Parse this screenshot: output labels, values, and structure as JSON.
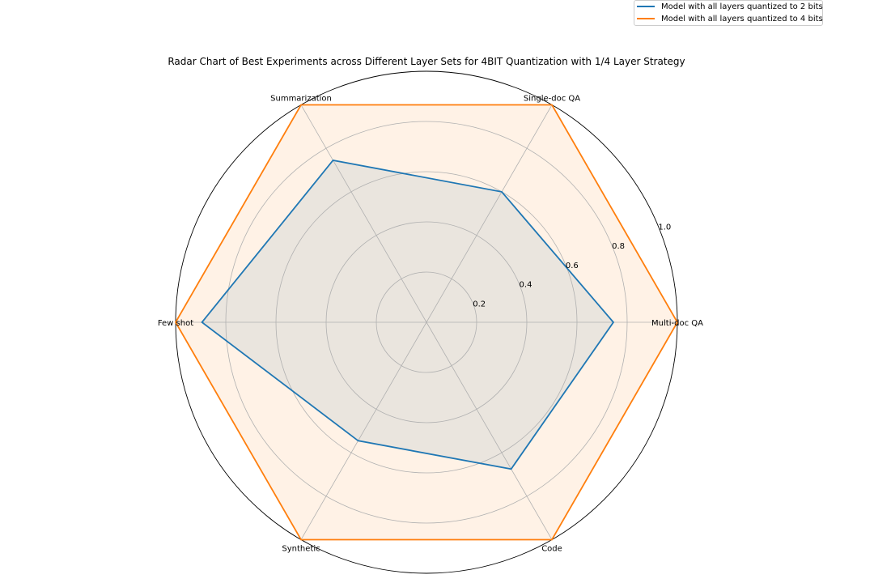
{
  "chart_data": {
    "type": "radar",
    "title": "Radar Chart of Best Experiments across Different Layer Sets for 4BIT Quantization with 1/4 Layer Strategy",
    "categories": [
      "Multi-doc QA",
      "Single-doc QA",
      "Summarization",
      "Few shot",
      "Synthetic",
      "Code"
    ],
    "radial_ticks": [
      "0.2",
      "0.4",
      "0.6",
      "0.8",
      "1.0"
    ],
    "rlim": [
      0,
      1.0
    ],
    "grid": true,
    "legend_position": "top-right",
    "series": [
      {
        "name": "Model with all layers quantized to 2 bits",
        "color": "#1f77b4",
        "values": [
          0.745,
          0.6,
          0.745,
          0.895,
          0.545,
          0.675
        ]
      },
      {
        "name": "Model with all layers quantized to 4 bits",
        "color": "#ff7f0e",
        "values": [
          1.0,
          1.0,
          1.0,
          1.0,
          1.0,
          1.0
        ]
      }
    ]
  }
}
